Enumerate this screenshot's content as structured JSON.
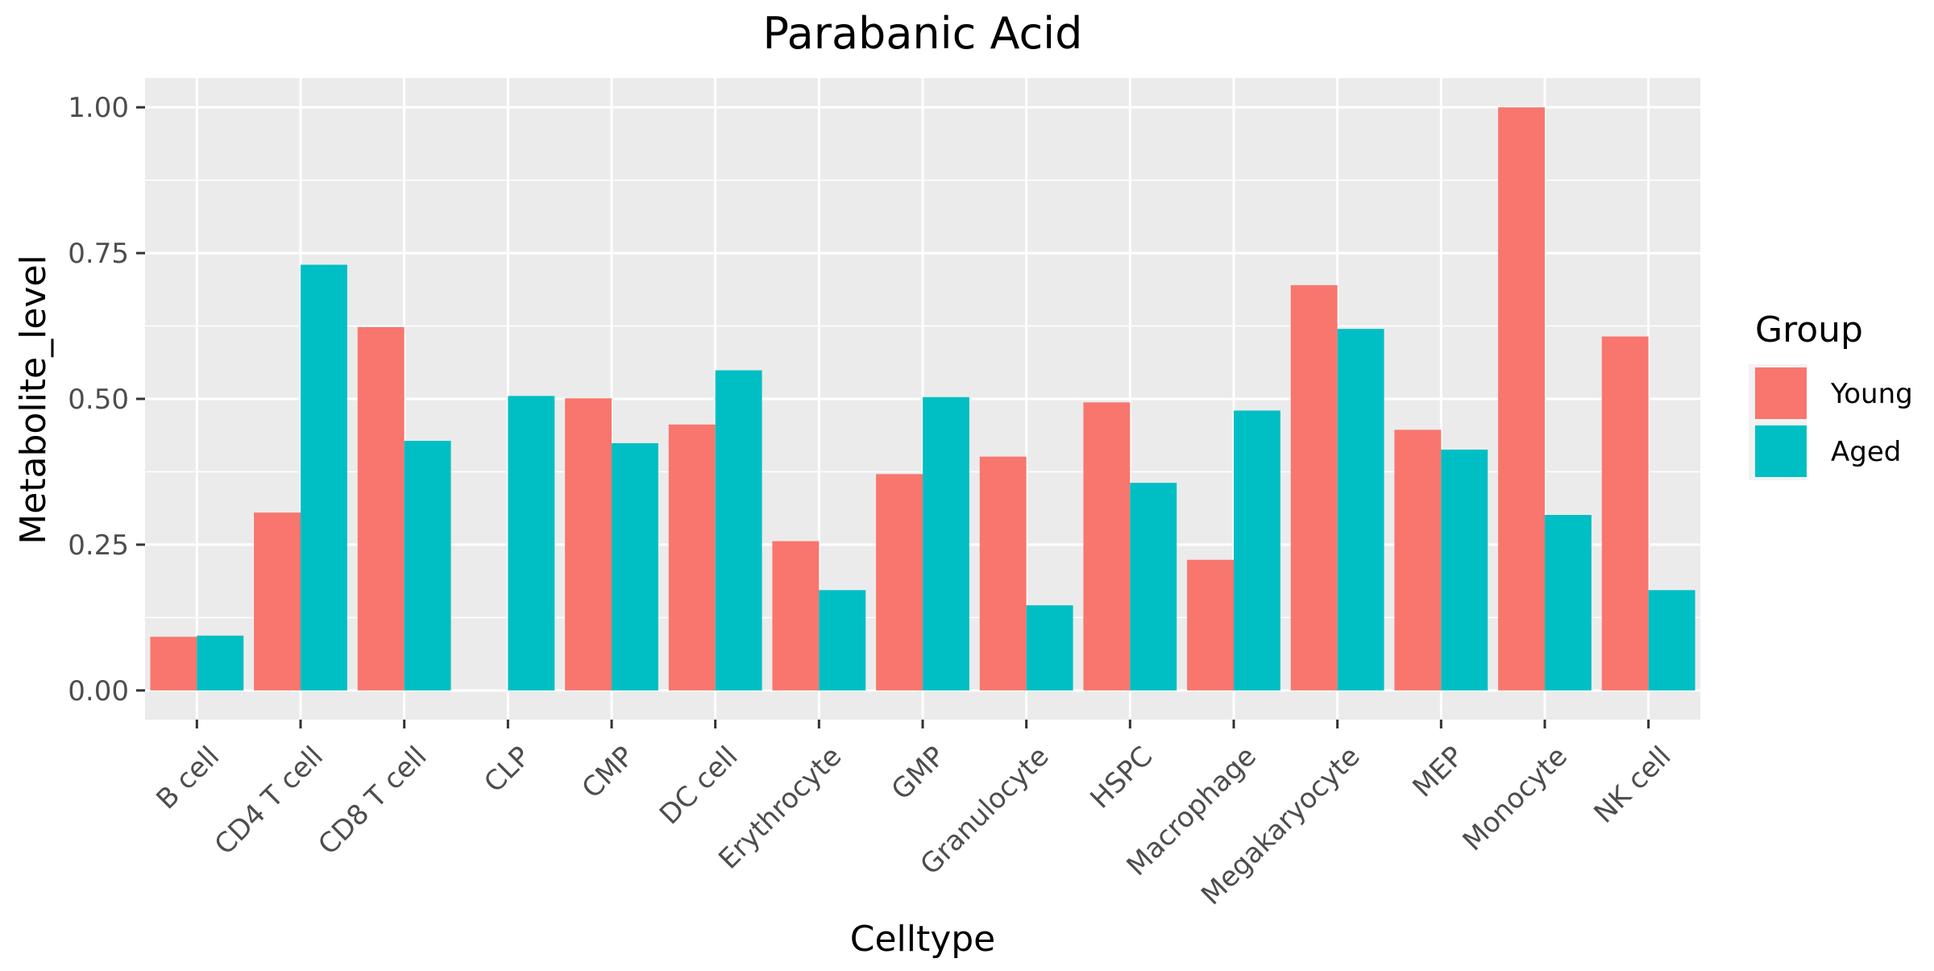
{
  "chart_data": {
    "type": "bar",
    "title": "Parabanic Acid",
    "xlabel": "Celltype",
    "ylabel": "Metabolite_level",
    "ylim": [
      -0.05,
      1.05
    ],
    "yticks": [
      0.0,
      0.25,
      0.5,
      0.75,
      1.0
    ],
    "ytick_labels": [
      "0.00",
      "0.25",
      "0.50",
      "0.75",
      "1.00"
    ],
    "grid": true,
    "legend": {
      "title": "Group",
      "position": "right"
    },
    "categories": [
      "B cell",
      "CD4 T cell",
      "CD8 T cell",
      "CLP",
      "CMP",
      "DC cell",
      "Erythrocyte",
      "GMP",
      "Granulocyte",
      "HSPC",
      "Macrophage",
      "Megakaryocyte",
      "MEP",
      "Monocyte",
      "NK cell"
    ],
    "series": [
      {
        "name": "Young",
        "color": "#F8766D",
        "values": [
          0.092,
          0.305,
          0.623,
          0.0,
          0.501,
          0.456,
          0.256,
          0.371,
          0.401,
          0.494,
          0.224,
          0.695,
          0.447,
          1.0,
          0.607
        ]
      },
      {
        "name": "Aged",
        "color": "#00BFC4",
        "values": [
          0.094,
          0.73,
          0.428,
          0.505,
          0.424,
          0.549,
          0.172,
          0.503,
          0.146,
          0.356,
          0.48,
          0.62,
          0.413,
          0.301,
          0.172
        ]
      }
    ]
  }
}
